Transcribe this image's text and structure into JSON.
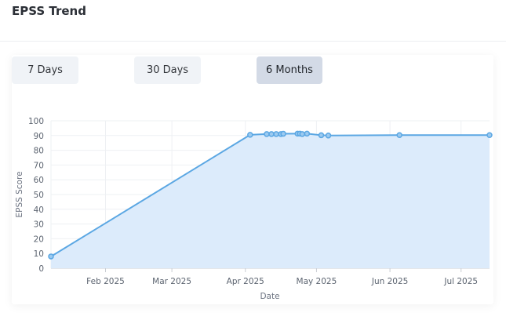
{
  "header": {
    "title": "EPSS Trend"
  },
  "range_buttons": [
    {
      "label": "7 Days",
      "active": false
    },
    {
      "label": "30 Days",
      "active": false
    },
    {
      "label": "6 Months",
      "active": true
    }
  ],
  "colors": {
    "line": "#5ba7e3",
    "fill": "#dcebfb",
    "grid": "#eef0f3",
    "axis": "#c9cdd3"
  },
  "chart_data": {
    "type": "area",
    "xlabel": "Date",
    "ylabel": "EPSS Score",
    "ylim": [
      0,
      100
    ],
    "yticks": [
      0,
      10,
      20,
      30,
      40,
      50,
      60,
      70,
      80,
      90,
      100
    ],
    "xlim": [
      "2025-01-09",
      "2025-07-13"
    ],
    "xticks": [
      {
        "date": "2025-02-01",
        "label": "Feb 2025"
      },
      {
        "date": "2025-03-01",
        "label": "Mar 2025"
      },
      {
        "date": "2025-04-01",
        "label": "Apr 2025"
      },
      {
        "date": "2025-05-01",
        "label": "May 2025"
      },
      {
        "date": "2025-06-01",
        "label": "Jun 2025"
      },
      {
        "date": "2025-07-01",
        "label": "Jul 2025"
      }
    ],
    "series": [
      {
        "points": [
          {
            "x": "2025-01-09",
            "y": 8
          },
          {
            "x": "2025-04-03",
            "y": 90.5
          },
          {
            "x": "2025-04-10",
            "y": 91
          },
          {
            "x": "2025-04-12",
            "y": 91
          },
          {
            "x": "2025-04-14",
            "y": 91
          },
          {
            "x": "2025-04-16",
            "y": 91
          },
          {
            "x": "2025-04-17",
            "y": 91.2
          },
          {
            "x": "2025-04-23",
            "y": 91.3
          },
          {
            "x": "2025-04-24",
            "y": 91.3
          },
          {
            "x": "2025-04-25",
            "y": 91
          },
          {
            "x": "2025-04-27",
            "y": 91.3
          },
          {
            "x": "2025-05-03",
            "y": 90.2
          },
          {
            "x": "2025-05-06",
            "y": 90
          },
          {
            "x": "2025-06-05",
            "y": 90.3
          },
          {
            "x": "2025-07-13",
            "y": 90.3
          }
        ]
      }
    ]
  }
}
